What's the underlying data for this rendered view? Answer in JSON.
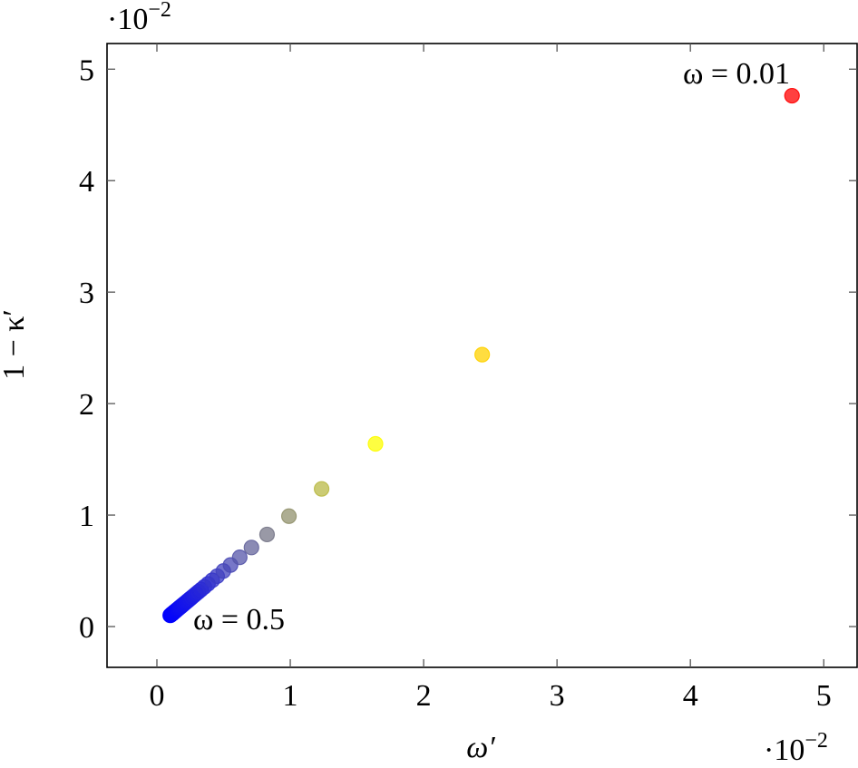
{
  "chart_data": {
    "type": "scatter",
    "x_label": "ω′",
    "y_label": "1 − κ′",
    "x_multiplier": {
      "base": "·10",
      "exponent": "−2"
    },
    "y_multiplier": {
      "base": "·10",
      "exponent": "−2"
    },
    "x": [
      4.762,
      2.439,
      1.639,
      1.235,
      0.99,
      0.826,
      0.709,
      0.621,
      0.552,
      0.498,
      0.452,
      0.415,
      0.383,
      0.356,
      0.332,
      0.312,
      0.294,
      0.277,
      0.262,
      0.249,
      0.237,
      0.226,
      0.216,
      0.207,
      0.198,
      0.191,
      0.184,
      0.177,
      0.171,
      0.166,
      0.16,
      0.156,
      0.151,
      0.147,
      0.143,
      0.139,
      0.135,
      0.131,
      0.128,
      0.125,
      0.122,
      0.119,
      0.116,
      0.113,
      0.111,
      0.109,
      0.106,
      0.104,
      0.102,
      0.1
    ],
    "values": [
      4.762,
      2.439,
      1.639,
      1.235,
      0.99,
      0.826,
      0.709,
      0.621,
      0.552,
      0.498,
      0.452,
      0.415,
      0.383,
      0.356,
      0.332,
      0.312,
      0.294,
      0.277,
      0.262,
      0.249,
      0.237,
      0.226,
      0.216,
      0.207,
      0.198,
      0.191,
      0.184,
      0.177,
      0.171,
      0.166,
      0.16,
      0.156,
      0.151,
      0.147,
      0.143,
      0.139,
      0.135,
      0.131,
      0.128,
      0.125,
      0.122,
      0.119,
      0.116,
      0.113,
      0.111,
      0.109,
      0.106,
      0.104,
      0.102,
      0.1
    ],
    "colormap": [
      "#0000ff",
      "#ffff00",
      "#ffa500",
      "#ff0000"
    ],
    "annotations": [
      {
        "text": "ω = 0.01"
      },
      {
        "text": "ω = 0.5"
      }
    ],
    "xlim": [
      -0.374,
      5.25
    ],
    "ylim": [
      -0.366,
      5.23
    ],
    "xticks": [
      0,
      1,
      2,
      3,
      4,
      5
    ],
    "yticks": [
      0,
      1,
      2,
      3,
      4,
      5
    ]
  }
}
